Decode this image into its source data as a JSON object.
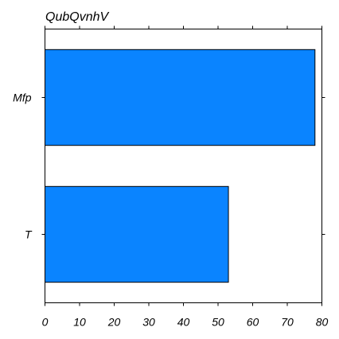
{
  "chart_data": {
    "type": "bar",
    "orientation": "horizontal",
    "title": "QubQvnhV",
    "xlabel": "",
    "ylabel": "",
    "categories": [
      "Mfp",
      "T"
    ],
    "values": [
      78,
      53
    ],
    "xlim": [
      0,
      80
    ],
    "x_ticks": [
      0,
      10,
      20,
      30,
      40,
      50,
      60,
      70,
      80
    ],
    "grid": false,
    "bar_color": "#0a84ff"
  }
}
